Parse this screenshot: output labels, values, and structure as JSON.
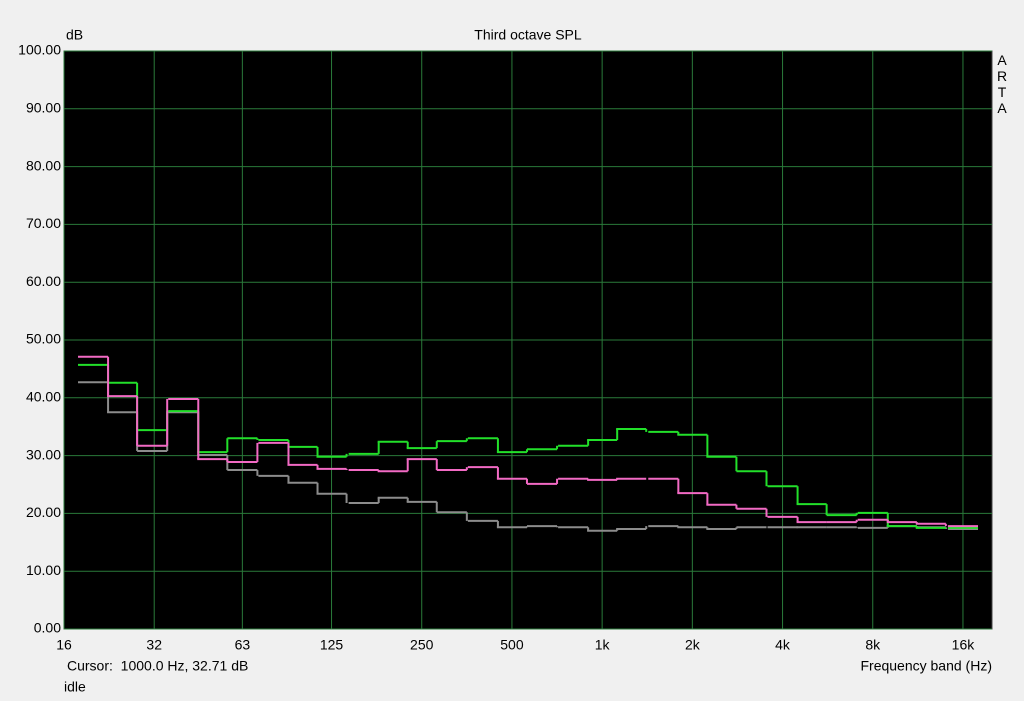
{
  "chart_data": {
    "type": "step",
    "title": "Third octave SPL",
    "y_label": "dB",
    "x_label": "Frequency band (Hz)",
    "watermark": "ARTA",
    "cursor_text": "Cursor:  1000.0 Hz, 32.71 dB",
    "status": "idle",
    "log_x": true,
    "grid": true,
    "xlim": [
      16,
      20000
    ],
    "xticks": [
      16,
      32,
      63,
      125,
      250,
      500,
      {
        "value": 1000,
        "label": "1k"
      },
      {
        "value": 2000,
        "label": "2k"
      },
      {
        "value": 4000,
        "label": "4k"
      },
      {
        "value": 8000,
        "label": "8k"
      },
      {
        "value": 16000,
        "label": "16k"
      }
    ],
    "ylim": [
      0,
      100
    ],
    "yticks": [
      {
        "value": 0,
        "label": "0.00"
      },
      {
        "value": 10,
        "label": "10.00"
      },
      {
        "value": 20,
        "label": "20.00"
      },
      {
        "value": 30,
        "label": "30.00"
      },
      {
        "value": 40,
        "label": "40.00"
      },
      {
        "value": 50,
        "label": "50.00"
      },
      {
        "value": 60,
        "label": "60.00"
      },
      {
        "value": 70,
        "label": "70.00"
      },
      {
        "value": 80,
        "label": "80.00"
      },
      {
        "value": 90,
        "label": "90.00"
      },
      {
        "value": 100,
        "label": "100.00"
      }
    ],
    "x": [
      20,
      25,
      31.5,
      40,
      50,
      63,
      80,
      100,
      125,
      160,
      200,
      250,
      315,
      400,
      500,
      630,
      800,
      1000,
      1250,
      1600,
      2000,
      2500,
      3150,
      4000,
      5000,
      6300,
      8000,
      10000,
      12500,
      16000
    ],
    "series": [
      {
        "color": "#8c8c8c",
        "values": [
          42.7,
          37.5,
          30.8,
          37.5,
          30.1,
          27.5,
          26.5,
          25.3,
          23.4,
          21.8,
          22.7,
          22.0,
          20.2,
          18.7,
          17.6,
          17.8,
          17.6,
          17.0,
          17.3,
          17.8,
          17.6,
          17.3,
          17.6,
          17.6,
          17.6,
          17.6,
          17.5,
          17.8,
          17.6,
          17.3
        ]
      },
      {
        "color": "#22e02a",
        "values": [
          45.7,
          42.6,
          34.4,
          37.7,
          30.6,
          33.0,
          32.7,
          31.5,
          29.8,
          30.3,
          32.4,
          31.3,
          32.5,
          33.0,
          30.6,
          31.1,
          31.7,
          32.7,
          34.6,
          34.1,
          33.6,
          29.8,
          27.3,
          24.7,
          21.6,
          19.7,
          20.1,
          17.8,
          17.5,
          17.5
        ]
      },
      {
        "color": "#f26ac4",
        "values": [
          47.1,
          40.3,
          31.7,
          39.8,
          29.4,
          28.9,
          32.2,
          28.4,
          27.7,
          27.5,
          27.3,
          29.4,
          27.5,
          28.0,
          26.0,
          25.1,
          26.0,
          25.8,
          26.0,
          26.0,
          23.5,
          21.5,
          20.8,
          19.4,
          18.5,
          18.5,
          18.9,
          18.5,
          18.2,
          17.8
        ]
      }
    ]
  }
}
